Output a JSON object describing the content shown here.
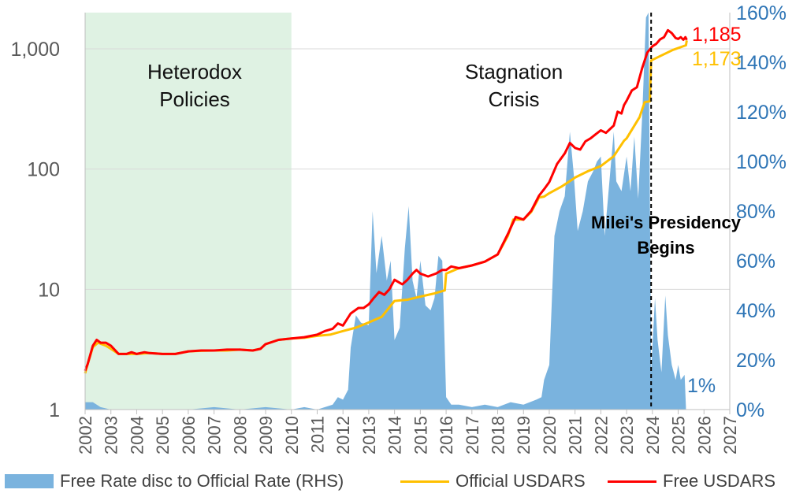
{
  "chart_data": {
    "type": "area+line",
    "x_ticks": [
      "2002",
      "2003",
      "2004",
      "2005",
      "2006",
      "2007",
      "2008",
      "2009",
      "2010",
      "2011",
      "2012",
      "2013",
      "2014",
      "2015",
      "2016",
      "2017",
      "2018",
      "2019",
      "2020",
      "2021",
      "2022",
      "2023",
      "2024",
      "2025",
      "2026",
      "2027"
    ],
    "y_left": {
      "scale": "log",
      "range": [
        1,
        2000
      ],
      "ticks": [
        1,
        10,
        100,
        1000
      ],
      "tick_labels": [
        "1",
        "10",
        "100",
        "1,000"
      ]
    },
    "y_right": {
      "range": [
        0,
        160
      ],
      "ticks": [
        0,
        20,
        40,
        60,
        80,
        100,
        120,
        140,
        160
      ],
      "tick_labels": [
        "0%",
        "20%",
        "40%",
        "60%",
        "80%",
        "100%",
        "120%",
        "140%",
        "160%"
      ]
    },
    "shaded_region": {
      "x_from": 2002,
      "x_to": 2010,
      "color": "#dff2e3",
      "label_lines": [
        "Heterodox",
        "Policies"
      ]
    },
    "region_label": {
      "lines": [
        "Stagnation",
        "Crisis"
      ],
      "x": 2019.5,
      "y": 400
    },
    "event": {
      "x": 2023.95,
      "label_lines": [
        "Milei's Presidency",
        "Begins"
      ]
    },
    "colors": {
      "area": "#7ab3de",
      "official": "#ffc000",
      "free": "#ff0000",
      "right_axis": "#2e75b6",
      "left_axis": "#595959",
      "grid": "#d9d9d9"
    },
    "series": [
      {
        "name": "Free Rate disc to Official Rate (RHS)",
        "type": "area",
        "axis": "right",
        "points": [
          [
            2002.0,
            3
          ],
          [
            2002.3,
            3
          ],
          [
            2002.6,
            1
          ],
          [
            2003.0,
            0
          ],
          [
            2004.0,
            0
          ],
          [
            2005.0,
            0
          ],
          [
            2006.0,
            0
          ],
          [
            2007.0,
            1
          ],
          [
            2008.0,
            0
          ],
          [
            2009.0,
            1
          ],
          [
            2010.0,
            0
          ],
          [
            2010.5,
            1
          ],
          [
            2011.0,
            0
          ],
          [
            2011.3,
            1
          ],
          [
            2011.6,
            2
          ],
          [
            2011.8,
            5
          ],
          [
            2012.0,
            4
          ],
          [
            2012.2,
            8
          ],
          [
            2012.3,
            25
          ],
          [
            2012.5,
            38
          ],
          [
            2012.7,
            35
          ],
          [
            2013.0,
            34
          ],
          [
            2013.15,
            80
          ],
          [
            2013.3,
            55
          ],
          [
            2013.5,
            70
          ],
          [
            2013.7,
            52
          ],
          [
            2013.85,
            60
          ],
          [
            2014.0,
            28
          ],
          [
            2014.2,
            33
          ],
          [
            2014.4,
            65
          ],
          [
            2014.55,
            82
          ],
          [
            2014.7,
            52
          ],
          [
            2014.85,
            45
          ],
          [
            2015.0,
            60
          ],
          [
            2015.2,
            42
          ],
          [
            2015.4,
            40
          ],
          [
            2015.55,
            45
          ],
          [
            2015.7,
            62
          ],
          [
            2015.85,
            60
          ],
          [
            2016.0,
            5
          ],
          [
            2016.2,
            2
          ],
          [
            2016.5,
            2
          ],
          [
            2017.0,
            1
          ],
          [
            2017.5,
            2
          ],
          [
            2018.0,
            1
          ],
          [
            2018.5,
            3
          ],
          [
            2019.0,
            2
          ],
          [
            2019.5,
            4
          ],
          [
            2019.7,
            5
          ],
          [
            2019.8,
            12
          ],
          [
            2020.0,
            18
          ],
          [
            2020.2,
            70
          ],
          [
            2020.4,
            80
          ],
          [
            2020.6,
            86
          ],
          [
            2020.8,
            112
          ],
          [
            2020.95,
            95
          ],
          [
            2021.1,
            72
          ],
          [
            2021.3,
            80
          ],
          [
            2021.5,
            92
          ],
          [
            2021.7,
            96
          ],
          [
            2021.85,
            100
          ],
          [
            2022.0,
            102
          ],
          [
            2022.15,
            70
          ],
          [
            2022.3,
            88
          ],
          [
            2022.5,
            112
          ],
          [
            2022.6,
            92
          ],
          [
            2022.8,
            88
          ],
          [
            2023.0,
            102
          ],
          [
            2023.15,
            88
          ],
          [
            2023.3,
            110
          ],
          [
            2023.45,
            85
          ],
          [
            2023.6,
            118
          ],
          [
            2023.75,
            158
          ],
          [
            2023.85,
            160
          ],
          [
            2023.95,
            15
          ],
          [
            2024.1,
            45
          ],
          [
            2024.2,
            28
          ],
          [
            2024.35,
            15
          ],
          [
            2024.5,
            46
          ],
          [
            2024.6,
            30
          ],
          [
            2024.75,
            18
          ],
          [
            2024.9,
            12
          ],
          [
            2025.0,
            18
          ],
          [
            2025.1,
            12
          ],
          [
            2025.25,
            14
          ],
          [
            2025.3,
            1
          ]
        ]
      },
      {
        "name": "Official USDARS",
        "type": "line",
        "axis": "left",
        "points": [
          [
            2002.0,
            2.0
          ],
          [
            2002.1,
            2.4
          ],
          [
            2002.3,
            3.3
          ],
          [
            2002.5,
            3.6
          ],
          [
            2002.8,
            3.4
          ],
          [
            2003.0,
            3.2
          ],
          [
            2003.3,
            2.9
          ],
          [
            2003.6,
            2.9
          ],
          [
            2004.0,
            2.9
          ],
          [
            2004.5,
            2.95
          ],
          [
            2005.0,
            2.9
          ],
          [
            2005.5,
            2.9
          ],
          [
            2006.0,
            3.05
          ],
          [
            2006.5,
            3.08
          ],
          [
            2007.0,
            3.1
          ],
          [
            2007.5,
            3.1
          ],
          [
            2008.0,
            3.15
          ],
          [
            2008.5,
            3.1
          ],
          [
            2008.8,
            3.2
          ],
          [
            2009.0,
            3.5
          ],
          [
            2009.5,
            3.8
          ],
          [
            2010.0,
            3.9
          ],
          [
            2010.5,
            3.95
          ],
          [
            2011.0,
            4.1
          ],
          [
            2011.5,
            4.2
          ],
          [
            2012.0,
            4.5
          ],
          [
            2012.5,
            4.8
          ],
          [
            2013.0,
            5.3
          ],
          [
            2013.5,
            5.9
          ],
          [
            2014.0,
            8.0
          ],
          [
            2014.5,
            8.2
          ],
          [
            2015.0,
            8.7
          ],
          [
            2015.5,
            9.2
          ],
          [
            2015.95,
            9.8
          ],
          [
            2016.0,
            13.5
          ],
          [
            2016.5,
            15.0
          ],
          [
            2017.0,
            15.8
          ],
          [
            2017.5,
            17.0
          ],
          [
            2018.0,
            19.5
          ],
          [
            2018.4,
            28
          ],
          [
            2018.6,
            38
          ],
          [
            2019.0,
            38
          ],
          [
            2019.3,
            44
          ],
          [
            2019.6,
            58
          ],
          [
            2019.8,
            59
          ],
          [
            2020.0,
            63
          ],
          [
            2020.5,
            72
          ],
          [
            2020.9,
            82
          ],
          [
            2021.0,
            85
          ],
          [
            2021.5,
            96
          ],
          [
            2021.9,
            104
          ],
          [
            2022.0,
            106
          ],
          [
            2022.5,
            128
          ],
          [
            2022.9,
            172
          ],
          [
            2023.0,
            180
          ],
          [
            2023.5,
            270
          ],
          [
            2023.7,
            360
          ],
          [
            2023.9,
            366
          ],
          [
            2023.95,
            800
          ],
          [
            2024.3,
            870
          ],
          [
            2024.8,
            980
          ],
          [
            2025.3,
            1070
          ],
          [
            2025.33,
            1173
          ]
        ]
      },
      {
        "name": "Free USDARS",
        "type": "line",
        "axis": "left",
        "points": [
          [
            2002.0,
            2.1
          ],
          [
            2002.1,
            2.4
          ],
          [
            2002.3,
            3.4
          ],
          [
            2002.45,
            3.8
          ],
          [
            2002.6,
            3.6
          ],
          [
            2002.8,
            3.6
          ],
          [
            2003.0,
            3.4
          ],
          [
            2003.3,
            2.9
          ],
          [
            2003.6,
            2.9
          ],
          [
            2003.8,
            3.0
          ],
          [
            2004.0,
            2.9
          ],
          [
            2004.3,
            3.0
          ],
          [
            2004.5,
            2.95
          ],
          [
            2005.0,
            2.9
          ],
          [
            2005.5,
            2.9
          ],
          [
            2006.0,
            3.05
          ],
          [
            2006.5,
            3.1
          ],
          [
            2007.0,
            3.1
          ],
          [
            2007.5,
            3.15
          ],
          [
            2008.0,
            3.15
          ],
          [
            2008.5,
            3.1
          ],
          [
            2008.8,
            3.2
          ],
          [
            2009.0,
            3.5
          ],
          [
            2009.5,
            3.8
          ],
          [
            2010.0,
            3.9
          ],
          [
            2010.5,
            4.0
          ],
          [
            2011.0,
            4.2
          ],
          [
            2011.3,
            4.5
          ],
          [
            2011.6,
            4.7
          ],
          [
            2011.8,
            5.2
          ],
          [
            2012.0,
            5.0
          ],
          [
            2012.3,
            6.3
          ],
          [
            2012.6,
            7.0
          ],
          [
            2012.8,
            7.0
          ],
          [
            2013.0,
            7.5
          ],
          [
            2013.2,
            8.5
          ],
          [
            2013.4,
            9.5
          ],
          [
            2013.6,
            9.0
          ],
          [
            2013.8,
            10.0
          ],
          [
            2014.0,
            12.0
          ],
          [
            2014.3,
            11.0
          ],
          [
            2014.5,
            12.0
          ],
          [
            2014.7,
            13.5
          ],
          [
            2014.85,
            14.5
          ],
          [
            2015.0,
            13.5
          ],
          [
            2015.3,
            12.8
          ],
          [
            2015.6,
            13.5
          ],
          [
            2015.85,
            14.5
          ],
          [
            2016.0,
            14.5
          ],
          [
            2016.2,
            15.5
          ],
          [
            2016.5,
            15.0
          ],
          [
            2017.0,
            15.8
          ],
          [
            2017.5,
            17.0
          ],
          [
            2018.0,
            19.5
          ],
          [
            2018.4,
            29
          ],
          [
            2018.7,
            40
          ],
          [
            2019.0,
            38
          ],
          [
            2019.3,
            45
          ],
          [
            2019.6,
            60
          ],
          [
            2019.8,
            68
          ],
          [
            2020.0,
            78
          ],
          [
            2020.3,
            110
          ],
          [
            2020.6,
            135
          ],
          [
            2020.8,
            165
          ],
          [
            2021.0,
            150
          ],
          [
            2021.2,
            145
          ],
          [
            2021.4,
            170
          ],
          [
            2021.6,
            180
          ],
          [
            2021.8,
            195
          ],
          [
            2022.0,
            210
          ],
          [
            2022.2,
            200
          ],
          [
            2022.5,
            230
          ],
          [
            2022.65,
            300
          ],
          [
            2022.8,
            290
          ],
          [
            2022.9,
            340
          ],
          [
            2023.0,
            370
          ],
          [
            2023.2,
            450
          ],
          [
            2023.4,
            480
          ],
          [
            2023.6,
            690
          ],
          [
            2023.8,
            930
          ],
          [
            2024.0,
            1050
          ],
          [
            2024.15,
            1100
          ],
          [
            2024.3,
            1200
          ],
          [
            2024.45,
            1250
          ],
          [
            2024.6,
            1430
          ],
          [
            2024.75,
            1350
          ],
          [
            2024.9,
            1230
          ],
          [
            2025.0,
            1210
          ],
          [
            2025.1,
            1250
          ],
          [
            2025.2,
            1190
          ],
          [
            2025.28,
            1250
          ],
          [
            2025.33,
            1185
          ]
        ]
      }
    ],
    "end_labels": {
      "free": "1,185",
      "official": "1,173",
      "area": "1%"
    }
  }
}
